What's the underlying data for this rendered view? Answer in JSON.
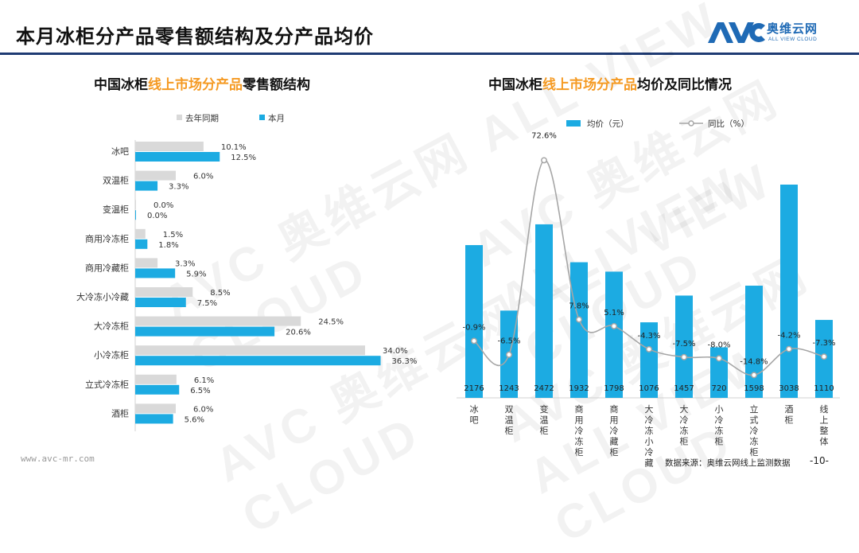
{
  "page": {
    "title": "本月冰柜分产品零售额结构及分产品均价",
    "logo_text": "奥维云网",
    "logo_sub": "ALL VIEW CLOUD",
    "footer_url": "www.avc-mr.com",
    "source": "数据来源：奥维云网线上监测数据",
    "page_number": "-10-",
    "watermark": "AVC 奥维云网 ALL VIEW CLOUD"
  },
  "colors": {
    "last_year": "#d9d9d9",
    "this_month": "#1cabe2",
    "line": "#a6a6a6",
    "accent": "#f59a23",
    "rule": "#1f3b73"
  },
  "chart_data": [
    {
      "type": "bar",
      "orientation": "horizontal",
      "title_parts": [
        "中国冰柜",
        "线上市场分产品",
        "零售额结构"
      ],
      "legend": [
        "去年同期",
        "本月"
      ],
      "categories": [
        "冰吧",
        "双温柜",
        "变温柜",
        "商用冷冻柜",
        "商用冷藏柜",
        "大冷冻小冷藏",
        "大冷冻柜",
        "小冷冻柜",
        "立式冷冻柜",
        "酒柜"
      ],
      "series": [
        {
          "name": "去年同期",
          "values": [
            10.1,
            6.0,
            0.0,
            1.5,
            3.3,
            8.5,
            24.5,
            34.0,
            6.1,
            6.0
          ],
          "labels": [
            "10.1%",
            "6.0%",
            "0.0%",
            "1.5%",
            "3.3%",
            "8.5%",
            "24.5%",
            "34.0%",
            "6.1%",
            "6.0%"
          ]
        },
        {
          "name": "本月",
          "values": [
            12.5,
            3.3,
            0.0,
            1.8,
            5.9,
            7.5,
            20.6,
            36.3,
            6.5,
            5.6
          ],
          "labels": [
            "12.5%",
            "3.3%",
            "0.0%",
            "1.8%",
            "5.9%",
            "7.5%",
            "20.6%",
            "36.3%",
            "6.5%",
            "5.6%"
          ]
        }
      ],
      "xlim": [
        0,
        40
      ]
    },
    {
      "type": "bar",
      "secondary_type": "line",
      "title_parts": [
        "中国冰柜",
        "线上市场分产品",
        "均价及同比情况"
      ],
      "legend": [
        "均价（元）",
        "同比（%）"
      ],
      "categories": [
        "冰吧",
        "双温柜",
        "变温柜",
        "商用冷冻柜",
        "商用冷藏柜",
        "大冷冻小冷藏",
        "大冷冻柜",
        "小冷冻柜",
        "立式冷冻柜",
        "酒柜",
        "线上整体"
      ],
      "bar_values": [
        2176,
        1243,
        2472,
        1932,
        1798,
        1076,
        1457,
        720,
        1598,
        3038,
        1110
      ],
      "bar_labels": [
        "2176",
        "1243",
        "2472",
        "1932",
        "1798",
        "1076",
        "1457",
        "720",
        "1598",
        "3038",
        "1110"
      ],
      "line_values": [
        -0.9,
        -6.5,
        72.6,
        7.8,
        5.1,
        -4.3,
        -7.5,
        -8.0,
        -14.8,
        -4.2,
        -7.3
      ],
      "line_labels": [
        "-0.9%",
        "-6.5%",
        "72.6%",
        "7.8%",
        "5.1%",
        "-4.3%",
        "-7.5%",
        "-8.0%",
        "-14.8%",
        "-4.2%",
        "-7.3%"
      ],
      "bar_ylim": [
        0,
        3200
      ],
      "line_ylim": [
        -15,
        75
      ]
    }
  ]
}
